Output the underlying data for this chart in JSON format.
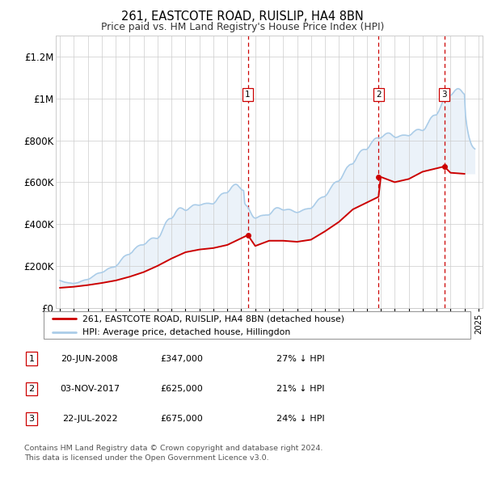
{
  "title": "261, EASTCOTE ROAD, RUISLIP, HA4 8BN",
  "subtitle": "Price paid vs. HM Land Registry's House Price Index (HPI)",
  "legend_line1": "261, EASTCOTE ROAD, RUISLIP, HA4 8BN (detached house)",
  "legend_line2": "HPI: Average price, detached house, Hillingdon",
  "footer_line1": "Contains HM Land Registry data © Crown copyright and database right 2024.",
  "footer_line2": "This data is licensed under the Open Government Licence v3.0.",
  "transactions": [
    {
      "num": 1,
      "date": "20-JUN-2008",
      "price": 347000,
      "pct": "27%",
      "dir": "↓",
      "x_year": 2008.47
    },
    {
      "num": 2,
      "date": "03-NOV-2017",
      "price": 625000,
      "pct": "21%",
      "dir": "↓",
      "x_year": 2017.84
    },
    {
      "num": 3,
      "date": "22-JUL-2022",
      "price": 675000,
      "pct": "24%",
      "dir": "↓",
      "x_year": 2022.55
    }
  ],
  "hpi_color": "#aacce8",
  "price_color": "#cc0000",
  "dashed_color": "#cc0000",
  "shade_color": "#ddeeff",
  "grid_color": "#cccccc",
  "bg_color": "#ffffff",
  "ylim": [
    0,
    1300000
  ],
  "xlim_start": 1994.7,
  "xlim_end": 2025.3,
  "hpi_data_x": [
    1995.0,
    1995.08,
    1995.17,
    1995.25,
    1995.33,
    1995.42,
    1995.5,
    1995.58,
    1995.67,
    1995.75,
    1995.83,
    1995.92,
    1996.0,
    1996.08,
    1996.17,
    1996.25,
    1996.33,
    1996.42,
    1996.5,
    1996.58,
    1996.67,
    1996.75,
    1996.83,
    1996.92,
    1997.0,
    1997.08,
    1997.17,
    1997.25,
    1997.33,
    1997.42,
    1997.5,
    1997.58,
    1997.67,
    1997.75,
    1997.83,
    1997.92,
    1998.0,
    1998.08,
    1998.17,
    1998.25,
    1998.33,
    1998.42,
    1998.5,
    1998.58,
    1998.67,
    1998.75,
    1998.83,
    1998.92,
    1999.0,
    1999.08,
    1999.17,
    1999.25,
    1999.33,
    1999.42,
    1999.5,
    1999.58,
    1999.67,
    1999.75,
    1999.83,
    1999.92,
    2000.0,
    2000.08,
    2000.17,
    2000.25,
    2000.33,
    2000.42,
    2000.5,
    2000.58,
    2000.67,
    2000.75,
    2000.83,
    2000.92,
    2001.0,
    2001.08,
    2001.17,
    2001.25,
    2001.33,
    2001.42,
    2001.5,
    2001.58,
    2001.67,
    2001.75,
    2001.83,
    2001.92,
    2002.0,
    2002.08,
    2002.17,
    2002.25,
    2002.33,
    2002.42,
    2002.5,
    2002.58,
    2002.67,
    2002.75,
    2002.83,
    2002.92,
    2003.0,
    2003.08,
    2003.17,
    2003.25,
    2003.33,
    2003.42,
    2003.5,
    2003.58,
    2003.67,
    2003.75,
    2003.83,
    2003.92,
    2004.0,
    2004.08,
    2004.17,
    2004.25,
    2004.33,
    2004.42,
    2004.5,
    2004.58,
    2004.67,
    2004.75,
    2004.83,
    2004.92,
    2005.0,
    2005.08,
    2005.17,
    2005.25,
    2005.33,
    2005.42,
    2005.5,
    2005.58,
    2005.67,
    2005.75,
    2005.83,
    2005.92,
    2006.0,
    2006.08,
    2006.17,
    2006.25,
    2006.33,
    2006.42,
    2006.5,
    2006.58,
    2006.67,
    2006.75,
    2006.83,
    2006.92,
    2007.0,
    2007.08,
    2007.17,
    2007.25,
    2007.33,
    2007.42,
    2007.5,
    2007.58,
    2007.67,
    2007.75,
    2007.83,
    2007.92,
    2008.0,
    2008.08,
    2008.17,
    2008.25,
    2008.33,
    2008.42,
    2008.5,
    2008.58,
    2008.67,
    2008.75,
    2008.83,
    2008.92,
    2009.0,
    2009.08,
    2009.17,
    2009.25,
    2009.33,
    2009.42,
    2009.5,
    2009.58,
    2009.67,
    2009.75,
    2009.83,
    2009.92,
    2010.0,
    2010.08,
    2010.17,
    2010.25,
    2010.33,
    2010.42,
    2010.5,
    2010.58,
    2010.67,
    2010.75,
    2010.83,
    2010.92,
    2011.0,
    2011.08,
    2011.17,
    2011.25,
    2011.33,
    2011.42,
    2011.5,
    2011.58,
    2011.67,
    2011.75,
    2011.83,
    2011.92,
    2012.0,
    2012.08,
    2012.17,
    2012.25,
    2012.33,
    2012.42,
    2012.5,
    2012.58,
    2012.67,
    2012.75,
    2012.83,
    2012.92,
    2013.0,
    2013.08,
    2013.17,
    2013.25,
    2013.33,
    2013.42,
    2013.5,
    2013.58,
    2013.67,
    2013.75,
    2013.83,
    2013.92,
    2014.0,
    2014.08,
    2014.17,
    2014.25,
    2014.33,
    2014.42,
    2014.5,
    2014.58,
    2014.67,
    2014.75,
    2014.83,
    2014.92,
    2015.0,
    2015.08,
    2015.17,
    2015.25,
    2015.33,
    2015.42,
    2015.5,
    2015.58,
    2015.67,
    2015.75,
    2015.83,
    2015.92,
    2016.0,
    2016.08,
    2016.17,
    2016.25,
    2016.33,
    2016.42,
    2016.5,
    2016.58,
    2016.67,
    2016.75,
    2016.83,
    2016.92,
    2017.0,
    2017.08,
    2017.17,
    2017.25,
    2017.33,
    2017.42,
    2017.5,
    2017.58,
    2017.67,
    2017.75,
    2017.83,
    2017.92,
    2018.0,
    2018.08,
    2018.17,
    2018.25,
    2018.33,
    2018.42,
    2018.5,
    2018.58,
    2018.67,
    2018.75,
    2018.83,
    2018.92,
    2019.0,
    2019.08,
    2019.17,
    2019.25,
    2019.33,
    2019.42,
    2019.5,
    2019.58,
    2019.67,
    2019.75,
    2019.83,
    2019.92,
    2020.0,
    2020.08,
    2020.17,
    2020.25,
    2020.33,
    2020.42,
    2020.5,
    2020.58,
    2020.67,
    2020.75,
    2020.83,
    2020.92,
    2021.0,
    2021.08,
    2021.17,
    2021.25,
    2021.33,
    2021.42,
    2021.5,
    2021.58,
    2021.67,
    2021.75,
    2021.83,
    2021.92,
    2022.0,
    2022.08,
    2022.17,
    2022.25,
    2022.33,
    2022.42,
    2022.5,
    2022.58,
    2022.67,
    2022.75,
    2022.83,
    2022.92,
    2023.0,
    2023.08,
    2023.17,
    2023.25,
    2023.33,
    2023.42,
    2023.5,
    2023.58,
    2023.67,
    2023.75,
    2023.83,
    2023.92,
    2024.0,
    2024.08,
    2024.17,
    2024.25,
    2024.33,
    2024.42,
    2024.5,
    2024.58,
    2024.67,
    2024.75
  ],
  "hpi_data_y": [
    130000,
    128000,
    126000,
    124000,
    122000,
    121000,
    120000,
    119000,
    118000,
    118000,
    117000,
    116000,
    116000,
    117000,
    118000,
    119000,
    121000,
    123000,
    126000,
    128000,
    130000,
    132000,
    133000,
    134000,
    135000,
    137000,
    140000,
    144000,
    148000,
    152000,
    156000,
    160000,
    163000,
    165000,
    166000,
    167000,
    168000,
    170000,
    173000,
    177000,
    181000,
    185000,
    188000,
    190000,
    192000,
    193000,
    194000,
    195000,
    197000,
    202000,
    208000,
    215000,
    223000,
    231000,
    238000,
    244000,
    248000,
    251000,
    253000,
    254000,
    256000,
    260000,
    265000,
    272000,
    279000,
    285000,
    290000,
    294000,
    297000,
    299000,
    300000,
    300000,
    301000,
    304000,
    308000,
    314000,
    320000,
    325000,
    329000,
    332000,
    333000,
    333000,
    332000,
    331000,
    331000,
    336000,
    343000,
    354000,
    367000,
    381000,
    394000,
    406000,
    415000,
    421000,
    425000,
    426000,
    427000,
    432000,
    440000,
    450000,
    460000,
    468000,
    474000,
    477000,
    477000,
    475000,
    472000,
    468000,
    465000,
    466000,
    469000,
    474000,
    479000,
    484000,
    488000,
    491000,
    492000,
    492000,
    491000,
    490000,
    490000,
    491000,
    493000,
    495000,
    497000,
    498000,
    499000,
    499000,
    499000,
    498000,
    497000,
    496000,
    497000,
    501000,
    508000,
    516000,
    524000,
    532000,
    538000,
    543000,
    546000,
    548000,
    549000,
    549000,
    550000,
    555000,
    562000,
    570000,
    578000,
    584000,
    588000,
    590000,
    589000,
    585000,
    579000,
    572000,
    566000,
    562000,
    560000,
    498000,
    490000,
    485000,
    478000,
    468000,
    456000,
    445000,
    436000,
    430000,
    428000,
    429000,
    432000,
    435000,
    438000,
    440000,
    441000,
    442000,
    442000,
    443000,
    443000,
    443000,
    444000,
    448000,
    455000,
    462000,
    469000,
    474000,
    477000,
    478000,
    477000,
    475000,
    472000,
    469000,
    467000,
    467000,
    468000,
    469000,
    470000,
    470000,
    469000,
    467000,
    464000,
    461000,
    458000,
    456000,
    455000,
    456000,
    458000,
    461000,
    464000,
    467000,
    469000,
    471000,
    472000,
    473000,
    474000,
    474000,
    475000,
    479000,
    485000,
    492000,
    500000,
    508000,
    515000,
    520000,
    524000,
    527000,
    529000,
    530000,
    532000,
    537000,
    544000,
    553000,
    563000,
    573000,
    582000,
    590000,
    596000,
    600000,
    603000,
    604000,
    606000,
    611000,
    619000,
    629000,
    640000,
    652000,
    662000,
    671000,
    677000,
    682000,
    685000,
    686000,
    688000,
    695000,
    704000,
    715000,
    726000,
    736000,
    744000,
    750000,
    754000,
    756000,
    757000,
    756000,
    757000,
    762000,
    770000,
    779000,
    788000,
    796000,
    803000,
    808000,
    811000,
    812000,
    812000,
    811000,
    812000,
    815000,
    820000,
    825000,
    830000,
    833000,
    835000,
    835000,
    833000,
    829000,
    824000,
    819000,
    815000,
    814000,
    815000,
    817000,
    820000,
    822000,
    824000,
    825000,
    825000,
    825000,
    824000,
    823000,
    822000,
    824000,
    828000,
    833000,
    839000,
    844000,
    848000,
    851000,
    852000,
    852000,
    850000,
    848000,
    847000,
    849000,
    855000,
    864000,
    875000,
    886000,
    897000,
    906000,
    913000,
    918000,
    920000,
    921000,
    922000,
    930000,
    941000,
    954000,
    968000,
    981000,
    993000,
    1002000,
    1008000,
    1012000,
    1014000,
    1014000,
    1014000,
    1018000,
    1025000,
    1032000,
    1039000,
    1044000,
    1047000,
    1047000,
    1044000,
    1039000,
    1032000,
    1025000,
    1020000,
    918000,
    870000,
    840000,
    815000,
    795000,
    780000,
    770000,
    763000,
    759000
  ],
  "price_data_x": [
    1995.0,
    1996.0,
    1997.0,
    1998.0,
    1999.0,
    2000.0,
    2001.0,
    2002.0,
    2003.0,
    2004.0,
    2005.0,
    2006.0,
    2007.0,
    2008.47,
    2009.0,
    2010.0,
    2011.0,
    2012.0,
    2013.0,
    2014.0,
    2015.0,
    2016.0,
    2017.84,
    2018.0,
    2019.0,
    2020.0,
    2021.0,
    2022.55,
    2023.0,
    2024.0
  ],
  "price_data_y": [
    95000,
    100000,
    108000,
    118000,
    130000,
    148000,
    170000,
    200000,
    235000,
    265000,
    278000,
    285000,
    300000,
    347000,
    295000,
    320000,
    320000,
    315000,
    325000,
    365000,
    410000,
    470000,
    530000,
    625000,
    600000,
    615000,
    650000,
    675000,
    645000,
    640000
  ]
}
